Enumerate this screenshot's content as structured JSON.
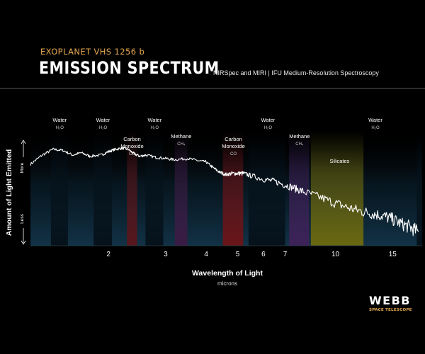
{
  "header": {
    "supertitle": "EXOPLANET VHS 1256 b",
    "title": "EMISSION SPECTRUM",
    "subtitle": "NIRSpec and MIRI | IFU Medium-Resolution Spectroscopy"
  },
  "logo": {
    "wordmark": "WEBB",
    "subline": "SPACE TELESCOPE"
  },
  "colors": {
    "background": "#000000",
    "plot_background": "#0d2636",
    "spectrum": "#ffffff",
    "accent": "#e7a94f"
  },
  "chart_data": {
    "type": "line",
    "title": "EMISSION SPECTRUM",
    "xlabel": "Wavelength of Light",
    "xlabel_units": "microns",
    "ylabel": "Amount of Light Emitted",
    "y_more": "More",
    "y_less": "Less",
    "x_scale": "log",
    "xlim": [
      1.15,
      18.5
    ],
    "ylim": [
      0,
      1
    ],
    "x_ticks": [
      2,
      3,
      4,
      5,
      6,
      7,
      10,
      15
    ],
    "y_ticks": [],
    "grid": false,
    "legend": "none",
    "bands": [
      {
        "label": "Water",
        "formula": "H₂O",
        "x0": 1.33,
        "x1": 1.5,
        "color": "#06121b"
      },
      {
        "label": "Water",
        "formula": "H₂O",
        "x0": 1.8,
        "x1": 2.05,
        "color": "#06121b"
      },
      {
        "label": "Carbon Monoxide",
        "formula": "CO",
        "x0": 2.28,
        "x1": 2.45,
        "color": "#58171c"
      },
      {
        "label": "Water",
        "formula": "H₂O",
        "x0": 2.6,
        "x1": 2.95,
        "color": "#06121b"
      },
      {
        "label": "Methane",
        "formula": "CH₄",
        "x0": 3.2,
        "x1": 3.5,
        "color": "#3a1c44"
      },
      {
        "label": "Carbon Monoxide",
        "formula": "CO",
        "x0": 4.5,
        "x1": 5.2,
        "color": "#6b1518"
      },
      {
        "label": "Water",
        "formula": "H₂O",
        "x0": 5.4,
        "x1": 7.0,
        "color": "#06121b"
      },
      {
        "label": "Methane",
        "formula": "CH₄",
        "x0": 7.2,
        "x1": 8.3,
        "color": "#3d2258"
      },
      {
        "label": "Silicates",
        "formula": "",
        "x0": 8.4,
        "x1": 12.2,
        "color": "#6b6810"
      },
      {
        "label": "Water",
        "formula": "H₂O",
        "x0": 17.8,
        "x1": 18.5,
        "color": "#06121b"
      }
    ],
    "x": [
      1.15,
      1.25,
      1.35,
      1.45,
      1.55,
      1.65,
      1.75,
      1.9,
      2.0,
      2.1,
      2.2,
      2.3,
      2.4,
      2.5,
      2.6,
      2.8,
      3.0,
      3.2,
      3.5,
      3.8,
      4.0,
      4.2,
      4.4,
      4.6,
      4.8,
      5.0,
      5.2,
      5.5,
      6.0,
      6.5,
      7.0,
      7.5,
      8.0,
      9.0,
      10.0,
      11.0,
      12.0,
      13.0,
      14.0,
      15.0,
      16.0,
      17.0,
      18.0
    ],
    "y": [
      0.71,
      0.79,
      0.84,
      0.83,
      0.79,
      0.81,
      0.78,
      0.79,
      0.82,
      0.84,
      0.85,
      0.84,
      0.8,
      0.78,
      0.79,
      0.77,
      0.76,
      0.75,
      0.76,
      0.74,
      0.73,
      0.68,
      0.64,
      0.62,
      0.63,
      0.63,
      0.63,
      0.61,
      0.58,
      0.56,
      0.53,
      0.5,
      0.47,
      0.42,
      0.37,
      0.33,
      0.3,
      0.28,
      0.26,
      0.23,
      0.19,
      0.16,
      0.12
    ]
  }
}
